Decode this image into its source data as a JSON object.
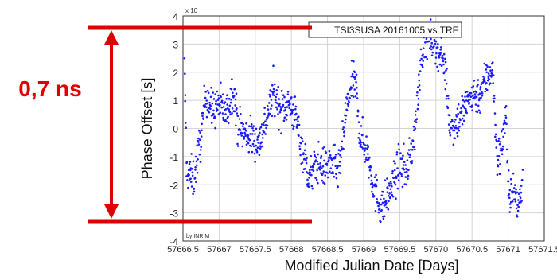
{
  "annotation": {
    "range_label": "0,7 ns",
    "color": "#e00000"
  },
  "chart_data": {
    "type": "scatter",
    "title": "",
    "legend": "TSI3SUSA 20161005 vs TRF",
    "legend_position": "top-right",
    "exponent_label": "x 10",
    "credit": "by INRIM",
    "xlabel": "Modified Julian Date [Days]",
    "ylabel": "Phase Offset [s]",
    "xlim": [
      57666.5,
      57671.5
    ],
    "ylim": [
      -4,
      4
    ],
    "xticks": [
      57666.5,
      57667,
      57667.5,
      57668,
      57668.5,
      57669,
      57669.5,
      57670,
      57670.5,
      57671,
      57671.5
    ],
    "xtick_labels": [
      "57666.5",
      "57667",
      "57667.5",
      "57668",
      "57668.5",
      "57669",
      "57669.5",
      "57670",
      "57670.5",
      "57671",
      "57671.5"
    ],
    "yticks": [
      -4,
      -3,
      -2,
      -1,
      0,
      1,
      2,
      3,
      4
    ],
    "ytick_labels": [
      "-4",
      "-3",
      "-2",
      "-1",
      "0",
      "1",
      "2",
      "3",
      "4"
    ],
    "grid": true,
    "marker_color": "#1a1aff",
    "series": [
      {
        "name": "TSI3SUSA 20161005 vs TRF",
        "trend": [
          [
            57666.52,
            2.2
          ],
          [
            57666.55,
            -1.5
          ],
          [
            57666.65,
            -1.8
          ],
          [
            57666.75,
            -0.3
          ],
          [
            57666.82,
            1.3
          ],
          [
            57666.9,
            0.6
          ],
          [
            57667.0,
            0.9
          ],
          [
            57667.1,
            0.5
          ],
          [
            57667.2,
            1.5
          ],
          [
            57667.25,
            0.2
          ],
          [
            57667.35,
            -0.2
          ],
          [
            57667.45,
            -0.3
          ],
          [
            57667.55,
            -0.5
          ],
          [
            57667.65,
            0.3
          ],
          [
            57667.75,
            1.3
          ],
          [
            57667.85,
            0.7
          ],
          [
            57667.95,
            0.9
          ],
          [
            57668.05,
            0.5
          ],
          [
            57668.15,
            -0.7
          ],
          [
            57668.25,
            -1.8
          ],
          [
            57668.35,
            -1.2
          ],
          [
            57668.45,
            -1.4
          ],
          [
            57668.55,
            -1.2
          ],
          [
            57668.65,
            -1.6
          ],
          [
            57668.7,
            -0.8
          ],
          [
            57668.75,
            0.5
          ],
          [
            57668.85,
            1.7
          ],
          [
            57668.9,
            1.4
          ],
          [
            57668.95,
            -0.3
          ],
          [
            57669.05,
            -0.8
          ],
          [
            57669.15,
            -2.2
          ],
          [
            57669.25,
            -2.8
          ],
          [
            57669.3,
            -2.6
          ],
          [
            57669.4,
            -2.0
          ],
          [
            57669.5,
            -1.3
          ],
          [
            57669.6,
            -1.5
          ],
          [
            57669.7,
            -0.3
          ],
          [
            57669.75,
            1.0
          ],
          [
            57669.8,
            2.8
          ],
          [
            57669.9,
            3.2
          ],
          [
            57670.0,
            3.0
          ],
          [
            57670.1,
            2.6
          ],
          [
            57670.15,
            1.5
          ],
          [
            57670.2,
            0.0
          ],
          [
            57670.3,
            0.3
          ],
          [
            57670.4,
            0.7
          ],
          [
            57670.5,
            1.2
          ],
          [
            57670.6,
            1.2
          ],
          [
            57670.7,
            1.8
          ],
          [
            57670.78,
            2.2
          ],
          [
            57670.85,
            -1.2
          ],
          [
            57670.92,
            -0.5
          ],
          [
            57670.97,
            0.7
          ],
          [
            57671.0,
            -2.3
          ],
          [
            57671.07,
            -2.2
          ],
          [
            57671.13,
            -2.8
          ],
          [
            57671.17,
            -2.4
          ],
          [
            57671.2,
            -1.6
          ]
        ],
        "spread": 0.35,
        "count": 1100
      }
    ]
  }
}
